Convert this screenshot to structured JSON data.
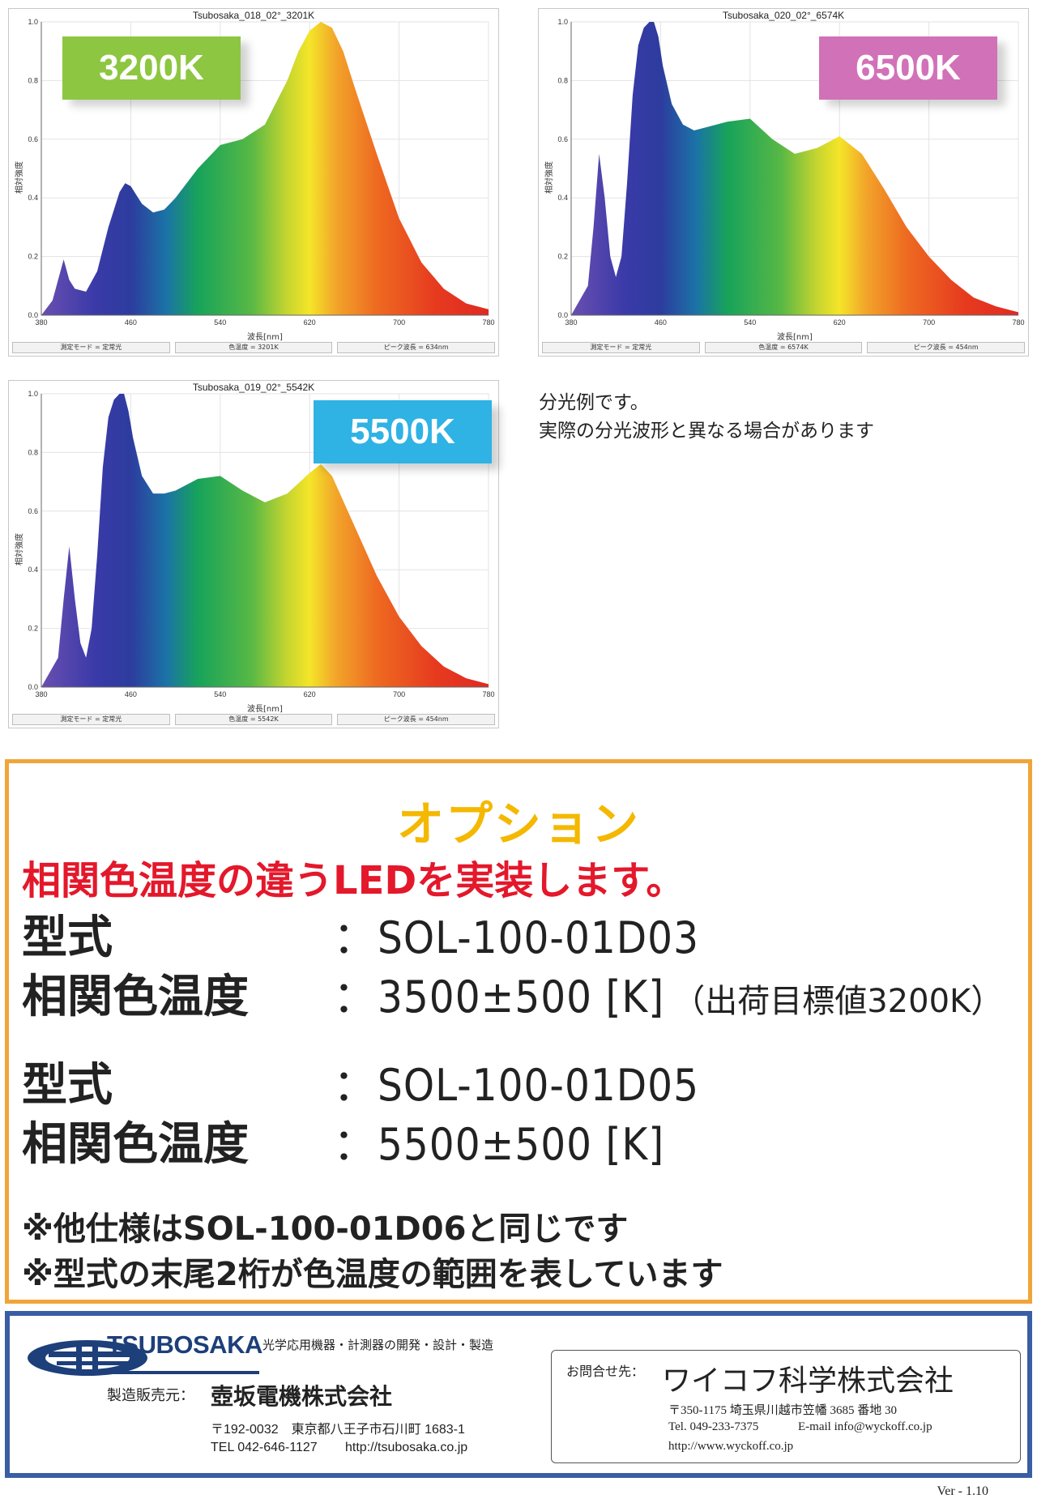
{
  "charts": [
    {
      "title": "Tsubosaka_018_02°_3201K",
      "badge": "3200K",
      "badge_color": "#8dc641",
      "ylabel": "相対強度",
      "xlabel": "波長[nm]",
      "status": [
        "測定モード = 定常光",
        "色温度 = 3201K",
        "ピーク波長 = 634nm"
      ],
      "chart_data": {
        "type": "area",
        "x": [
          380,
          390,
          395,
          400,
          405,
          410,
          420,
          430,
          440,
          450,
          455,
          460,
          470,
          480,
          490,
          500,
          510,
          520,
          540,
          560,
          580,
          600,
          610,
          620,
          630,
          635,
          640,
          650,
          660,
          680,
          700,
          720,
          740,
          760,
          780
        ],
        "y": [
          0.0,
          0.05,
          0.12,
          0.19,
          0.12,
          0.09,
          0.08,
          0.15,
          0.3,
          0.42,
          0.45,
          0.44,
          0.38,
          0.35,
          0.36,
          0.4,
          0.45,
          0.5,
          0.58,
          0.6,
          0.65,
          0.8,
          0.9,
          0.97,
          1.0,
          0.99,
          0.98,
          0.9,
          0.78,
          0.55,
          0.33,
          0.18,
          0.09,
          0.04,
          0.02
        ],
        "xlim": [
          380,
          780
        ],
        "ylim": [
          0,
          1.0
        ],
        "xticks": [
          "380",
          "460",
          "540",
          "620",
          "700",
          "780"
        ],
        "yticks": [
          "0.0",
          "0.2",
          "0.4",
          "0.6",
          "0.8",
          "1.0"
        ]
      }
    },
    {
      "title": "Tsubosaka_020_02°_6574K",
      "badge": "6500K",
      "badge_color": "#d171b8",
      "ylabel": "相対強度",
      "xlabel": "波長[nm]",
      "status": [
        "測定モード = 定常光",
        "色温度 = 6574K",
        "ピーク波長 = 454nm"
      ],
      "chart_data": {
        "type": "area",
        "x": [
          380,
          395,
          400,
          405,
          410,
          415,
          420,
          425,
          430,
          435,
          440,
          445,
          450,
          454,
          458,
          462,
          470,
          480,
          490,
          500,
          520,
          540,
          560,
          580,
          600,
          620,
          640,
          660,
          680,
          700,
          720,
          740,
          760,
          780
        ],
        "y": [
          0.0,
          0.1,
          0.3,
          0.55,
          0.4,
          0.2,
          0.13,
          0.2,
          0.45,
          0.75,
          0.92,
          0.98,
          1.0,
          1.0,
          0.95,
          0.85,
          0.72,
          0.65,
          0.63,
          0.64,
          0.66,
          0.67,
          0.6,
          0.55,
          0.57,
          0.61,
          0.55,
          0.43,
          0.3,
          0.2,
          0.12,
          0.06,
          0.03,
          0.01
        ],
        "xlim": [
          380,
          780
        ],
        "ylim": [
          0,
          1.0
        ],
        "xticks": [
          "380",
          "460",
          "540",
          "620",
          "700",
          "780"
        ],
        "yticks": [
          "0.0",
          "0.2",
          "0.4",
          "0.6",
          "0.8",
          "1.0"
        ]
      }
    },
    {
      "title": "Tsubosaka_019_02°_5542K",
      "badge": "5500K",
      "badge_color": "#2fb2e4",
      "ylabel": "相対強度",
      "xlabel": "波長[nm]",
      "status": [
        "測定モード = 定常光",
        "色温度 = 5542K",
        "ピーク波長 = 454nm"
      ],
      "chart_data": {
        "type": "area",
        "x": [
          380,
          395,
          400,
          405,
          410,
          415,
          420,
          425,
          430,
          435,
          440,
          445,
          450,
          454,
          458,
          462,
          470,
          480,
          490,
          500,
          520,
          540,
          560,
          580,
          600,
          620,
          630,
          640,
          660,
          680,
          700,
          720,
          740,
          760,
          780
        ],
        "y": [
          0.0,
          0.1,
          0.3,
          0.48,
          0.3,
          0.15,
          0.1,
          0.2,
          0.45,
          0.75,
          0.92,
          0.98,
          1.0,
          1.0,
          0.94,
          0.85,
          0.72,
          0.66,
          0.66,
          0.67,
          0.71,
          0.72,
          0.67,
          0.63,
          0.66,
          0.73,
          0.76,
          0.72,
          0.55,
          0.38,
          0.24,
          0.14,
          0.07,
          0.03,
          0.01
        ],
        "xlim": [
          380,
          780
        ],
        "ylim": [
          0,
          1.0
        ],
        "xticks": [
          "380",
          "460",
          "540",
          "620",
          "700",
          "780"
        ],
        "yticks": [
          "0.0",
          "0.2",
          "0.4",
          "0.6",
          "0.8",
          "1.0"
        ]
      }
    }
  ],
  "note": {
    "line1": "分光例です。",
    "line2": "実際の分光波形と異なる場合があります"
  },
  "option": {
    "title": "オプション",
    "subtitle": "相関色温度の違うLEDを実装します。",
    "specs": [
      {
        "label": "型式",
        "value": "：SOL-100-01D03",
        "extra": ""
      },
      {
        "label": "相関色温度",
        "value": "：3500±500 [K]",
        "extra": "（出荷目標値3200K）"
      },
      {
        "label": "型式",
        "value": "：SOL-100-01D05",
        "extra": ""
      },
      {
        "label": "相関色温度",
        "value": "：5500±500 [K]",
        "extra": ""
      }
    ],
    "notes": [
      "※他仕様はSOL-100-01D06と同じです",
      "※型式の末尾2桁が色温度の範囲を表しています"
    ]
  },
  "footer": {
    "logo_text": "TSUBOSAKA",
    "tagline": "光学応用機器・計測器の開発・設計・製造",
    "maker_label": "製造販売元：",
    "maker_name": "壺坂電機株式会社",
    "maker_address": "〒192-0032　東京都八王子市石川町 1683-1",
    "maker_tel": "TEL 042-646-1127",
    "maker_url": "http://tsubosaka.co.jp",
    "contact_label": "お問合せ先：",
    "contact_name": "ワイコフ科学株式会社",
    "contact_address": "〒350-1175  埼玉県川越市笠幡 3685 番地 30",
    "contact_tel": "Tel. 049-233-7375",
    "contact_email": "E-mail  info@wyckoff.co.jp",
    "contact_url": "http://www.wyckoff.co.jp"
  },
  "version": "Ver - 1.10",
  "colors": {
    "option_border": "#f0a53a",
    "option_title": "#f4b800",
    "option_subtitle": "#e4182b",
    "footer_border": "#3a5ea4",
    "logo_blue": "#1d3f7a"
  }
}
